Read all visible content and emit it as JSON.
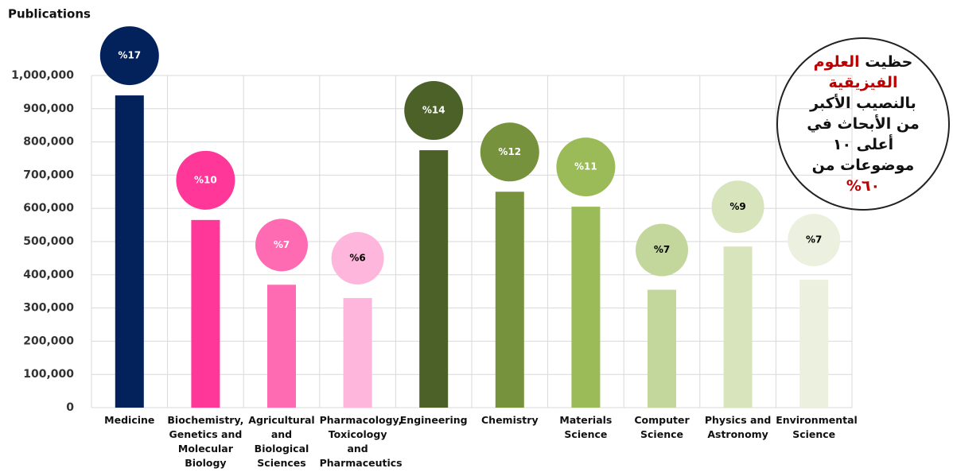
{
  "chart_data": {
    "type": "bar",
    "y_axis_label": "Publications",
    "categories": [
      "Medicine",
      "Biochemistry, Genetics and Molecular Biology",
      "Agricultural and Biological Sciences",
      "Pharmacology, Toxicology and Pharmaceutics",
      "Engineering",
      "Chemistry",
      "Materials Science",
      "Computer Science",
      "Physics and Astronomy",
      "Environmental Science"
    ],
    "values": [
      940000,
      565000,
      370000,
      330000,
      775000,
      650000,
      605000,
      355000,
      485000,
      385000
    ],
    "colors": [
      "#03225c",
      "#fe3799",
      "#ff6bb3",
      "#ffb6dc",
      "#4b6127",
      "#76923c",
      "#9bbb59",
      "#c3d69b",
      "#d7e4bc",
      "#ebf1de"
    ],
    "shares": [
      17,
      10,
      7,
      6,
      14,
      12,
      11,
      7,
      9,
      7
    ],
    "share_labels": [
      "%17",
      "%10",
      "%7",
      "%6",
      "%14",
      "%12",
      "%11",
      "%7",
      "%9",
      "%7"
    ],
    "share_text_colors": [
      "#ffffff",
      "#ffffff",
      "#ffffff",
      "#000000",
      "#ffffff",
      "#ffffff",
      "#ffffff",
      "#000000",
      "#000000",
      "#000000"
    ],
    "ylim": [
      0,
      1000000
    ],
    "yticks": [
      0,
      {
        "value": 100000,
        "label": "100,000"
      },
      {
        "value": 200000,
        "label": "200,000"
      },
      {
        "value": 300000,
        "label": "300,000"
      },
      {
        "value": 400000,
        "label": "400,000"
      },
      {
        "value": 500000,
        "label": "500,000"
      },
      {
        "value": 600000,
        "label": "600,000"
      },
      {
        "value": 700000,
        "label": "700,000"
      },
      {
        "value": 800000,
        "label": "800,000"
      },
      {
        "value": 900000,
        "label": "900,000"
      },
      {
        "value": 1000000,
        "label": "1,000,000"
      }
    ],
    "grid": true,
    "annotation": [
      "حظيت ",
      "العلوم الفيزيقية",
      " بالنصيب الأكبر من الأبحاث في أعلى ١٠ موضوعات من ",
      "٦٠%"
    ]
  }
}
